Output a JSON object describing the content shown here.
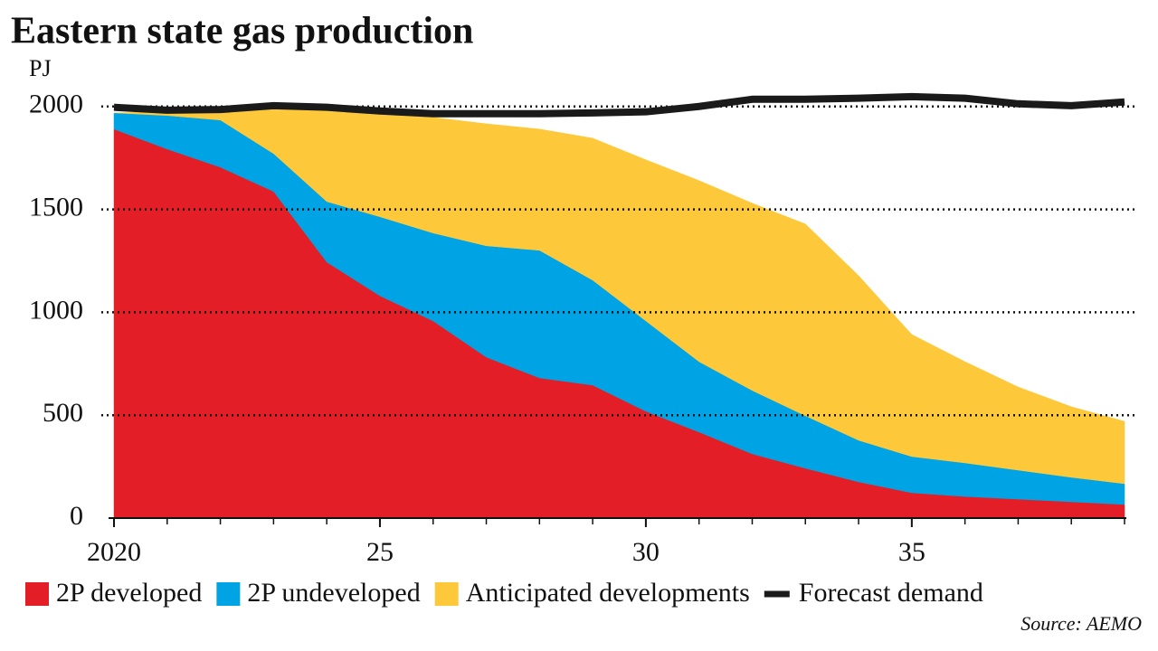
{
  "chart_data": {
    "type": "area",
    "stacked": true,
    "title": "Eastern state gas production",
    "y_label": "PJ",
    "source": "Source: AEMO",
    "x": [
      2020,
      2021,
      2022,
      2023,
      2024,
      2025,
      2026,
      2027,
      2028,
      2029,
      2030,
      2031,
      2032,
      2033,
      2034,
      2035,
      2036,
      2037,
      2038,
      2039
    ],
    "series": [
      {
        "name": "2P developed",
        "color": "#e31e26",
        "values": [
          1890,
          1793,
          1705,
          1587,
          1244,
          1080,
          958,
          782,
          681,
          646,
          519,
          418,
          312,
          242,
          176,
          123,
          105,
          92,
          79,
          66
        ]
      },
      {
        "name": "2P undeveloped",
        "color": "#00a4e4",
        "values": [
          79,
          163,
          229,
          184,
          294,
          384,
          427,
          541,
          620,
          510,
          439,
          342,
          308,
          255,
          202,
          176,
          163,
          141,
          119,
          101
        ]
      },
      {
        "name": "Anticipated developments",
        "color": "#fdc93b",
        "values": [
          0,
          18,
          44,
          220,
          440,
          496,
          562,
          593,
          589,
          690,
          783,
          880,
          910,
          932,
          800,
          593,
          492,
          404,
          343,
          303
        ]
      },
      {
        "name": "Forecast demand",
        "color": "#1a1a1a",
        "type": "line",
        "values": [
          1996,
          1982,
          1985,
          2004,
          1996,
          1978,
          1965,
          1965,
          1965,
          1969,
          1974,
          2000,
          2035,
          2035,
          2040,
          2048,
          2040,
          2013,
          2004,
          2022
        ]
      }
    ],
    "xlim": [
      2020,
      2039
    ],
    "xticks": [
      2020,
      {
        "value": 2025,
        "label": "25"
      },
      {
        "value": 2030,
        "label": "30"
      },
      {
        "value": 2035,
        "label": "35"
      }
    ],
    "ylim": [
      0,
      2100
    ],
    "yticks": [
      0,
      500,
      1000,
      1500,
      2000
    ],
    "grid": true
  }
}
